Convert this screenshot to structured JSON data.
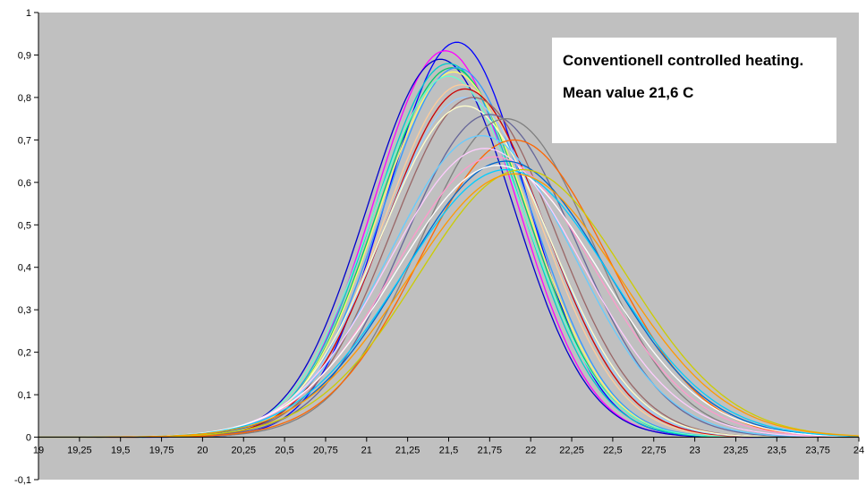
{
  "chart_data": {
    "type": "line",
    "title": "",
    "xlabel": "",
    "ylabel": "",
    "xlim": [
      19,
      24
    ],
    "ylim": [
      -0.1,
      1
    ],
    "grid": false,
    "background": "#c0c0c0",
    "x_ticks": [
      "19",
      "19,25",
      "19,5",
      "19,75",
      "20",
      "20,25",
      "20,5",
      "20,75",
      "21",
      "21,25",
      "21,5",
      "21,75",
      "22",
      "22,25",
      "22,5",
      "22,75",
      "23",
      "23,25",
      "23,5",
      "23,75",
      "24"
    ],
    "y_ticks": [
      "-0,1",
      "0",
      "0,1",
      "0,2",
      "0,3",
      "0,4",
      "0,5",
      "0,6",
      "0,7",
      "0,8",
      "0,9",
      "1"
    ],
    "annotation": {
      "line1": "Conventionell controlled heating.",
      "line2": "Mean value 21,6 C"
    },
    "series": [
      {
        "color": "#0000ff",
        "peak_x": 21.55,
        "peak_y": 0.93
      },
      {
        "color": "#ff00ff",
        "peak_x": 21.48,
        "peak_y": 0.91
      },
      {
        "color": "#0000cc",
        "peak_x": 21.45,
        "peak_y": 0.89
      },
      {
        "color": "#00cccc",
        "peak_x": 21.5,
        "peak_y": 0.88
      },
      {
        "color": "#00cc66",
        "peak_x": 21.52,
        "peak_y": 0.87
      },
      {
        "color": "#ffff66",
        "peak_x": 21.53,
        "peak_y": 0.86
      },
      {
        "color": "#3399ff",
        "peak_x": 21.55,
        "peak_y": 0.87
      },
      {
        "color": "#66ffcc",
        "peak_x": 21.5,
        "peak_y": 0.85
      },
      {
        "color": "#ffcc99",
        "peak_x": 21.58,
        "peak_y": 0.83
      },
      {
        "color": "#cc0000",
        "peak_x": 21.6,
        "peak_y": 0.82
      },
      {
        "color": "#99ccff",
        "peak_x": 21.6,
        "peak_y": 0.8
      },
      {
        "color": "#996666",
        "peak_x": 21.65,
        "peak_y": 0.8
      },
      {
        "color": "#ffffcc",
        "peak_x": 21.6,
        "peak_y": 0.78
      },
      {
        "color": "#666699",
        "peak_x": 21.75,
        "peak_y": 0.76
      },
      {
        "color": "#808080",
        "peak_x": 21.85,
        "peak_y": 0.75
      },
      {
        "color": "#66ccff",
        "peak_x": 21.7,
        "peak_y": 0.71
      },
      {
        "color": "#ff6600",
        "peak_x": 21.9,
        "peak_y": 0.7
      },
      {
        "color": "#ffccff",
        "peak_x": 21.72,
        "peak_y": 0.68
      },
      {
        "color": "#ff99cc",
        "peak_x": 21.78,
        "peak_y": 0.66
      },
      {
        "color": "#0066cc",
        "peak_x": 21.85,
        "peak_y": 0.65
      },
      {
        "color": "#ffffff",
        "peak_x": 21.8,
        "peak_y": 0.64
      },
      {
        "color": "#00ccff",
        "peak_x": 21.85,
        "peak_y": 0.63
      },
      {
        "color": "#cccc00",
        "peak_x": 21.95,
        "peak_y": 0.63
      },
      {
        "color": "#ff9900",
        "peak_x": 21.9,
        "peak_y": 0.62
      }
    ]
  }
}
